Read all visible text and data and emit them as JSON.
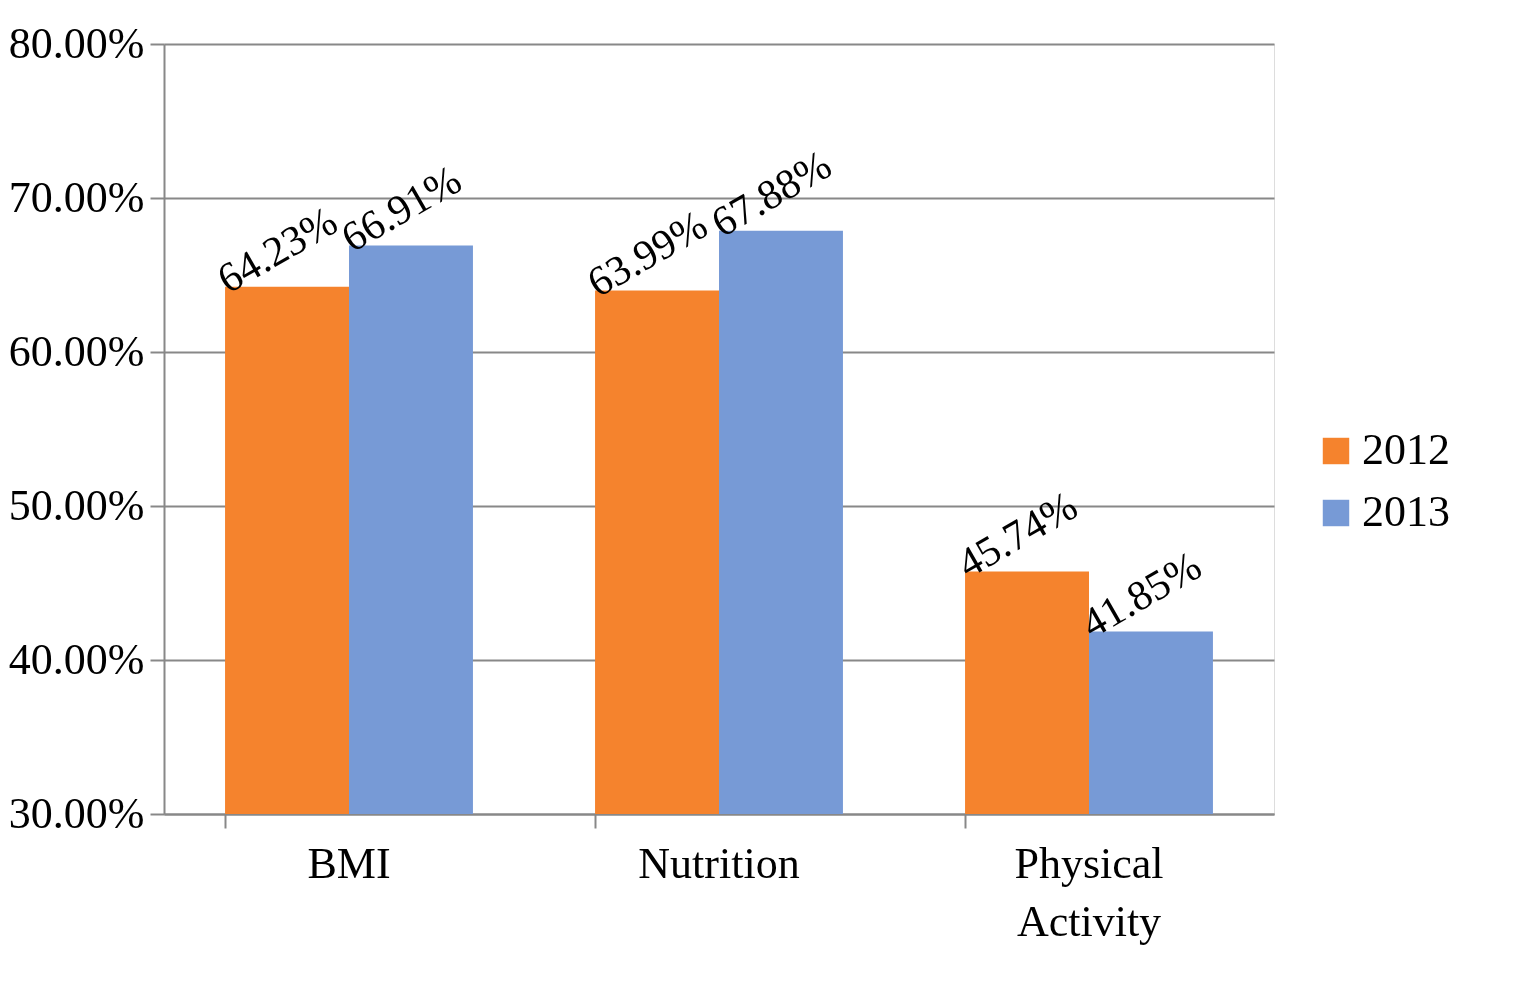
{
  "chart_data": {
    "type": "bar",
    "categories": [
      "BMI",
      "Nutrition",
      "Physical Activity"
    ],
    "series": [
      {
        "name": "2012",
        "color": "#f5832d",
        "values": [
          64.23,
          63.99,
          45.74
        ],
        "value_labels": [
          "64.23%",
          "63.99%",
          "45.74%"
        ]
      },
      {
        "name": "2013",
        "color": "#779ad6",
        "values": [
          66.91,
          67.88,
          41.85
        ],
        "value_labels": [
          "66.91%",
          "67.88%",
          "41.85%"
        ]
      }
    ],
    "ylim": [
      30,
      80
    ],
    "yticks": [
      {
        "value": 30,
        "label": "30.00%"
      },
      {
        "value": 40,
        "label": "40.00%"
      },
      {
        "value": 50,
        "label": "50.00%"
      },
      {
        "value": 60,
        "label": "60.00%"
      },
      {
        "value": 70,
        "label": "70.00%"
      },
      {
        "value": 80,
        "label": "80.00%"
      }
    ],
    "grid": "y",
    "legend": "right"
  }
}
